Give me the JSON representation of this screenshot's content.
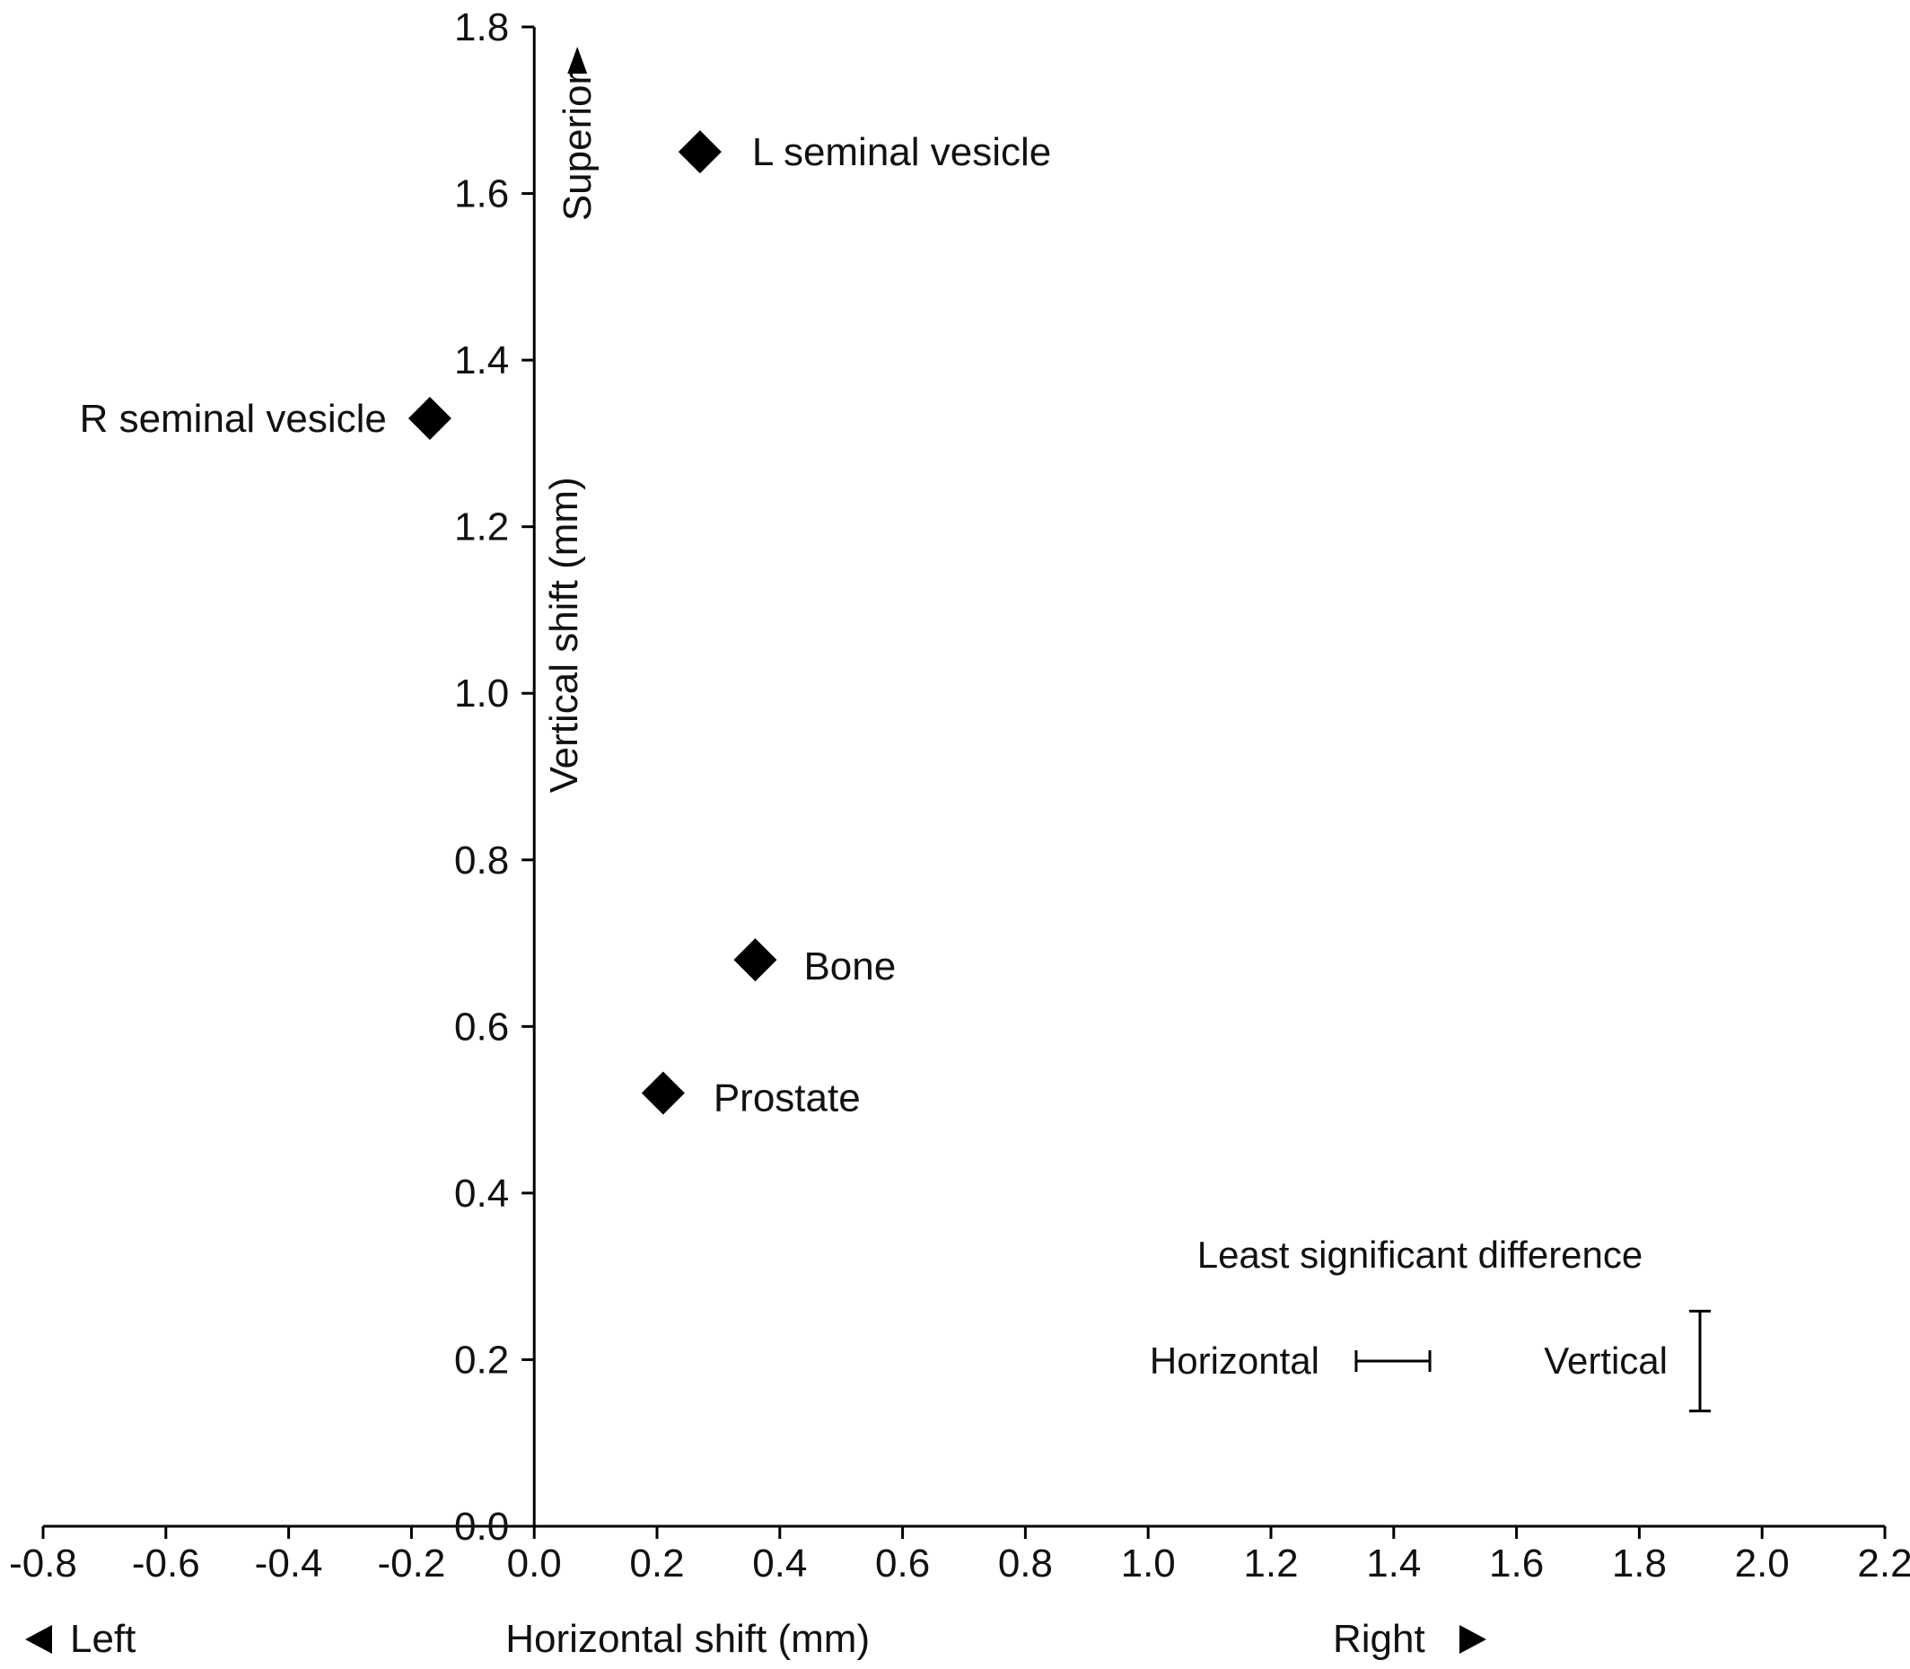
{
  "chart_data": {
    "type": "scatter",
    "title": "",
    "xlabel": "Horizontal shift (mm)",
    "ylabel": "Vertical shift (mm)",
    "xlim": [
      -0.8,
      2.2
    ],
    "ylim": [
      0.0,
      1.8
    ],
    "x_ticks": [
      "-0.8",
      "-0.6",
      "-0.4",
      "-0.2",
      "0.0",
      "0.2",
      "0.4",
      "0.6",
      "0.8",
      "1.0",
      "1.2",
      "1.4",
      "1.6",
      "1.8",
      "2.0",
      "2.2"
    ],
    "y_ticks": [
      "0.0",
      "0.2",
      "0.4",
      "0.6",
      "0.8",
      "1.0",
      "1.2",
      "1.4",
      "1.6",
      "1.8"
    ],
    "direction_labels": {
      "left": "Left",
      "right": "Right",
      "superior": "Superior"
    },
    "grid": false,
    "marker": "diamond",
    "marker_color": "#000000",
    "points": [
      {
        "label": "L seminal vesicle",
        "x": 0.27,
        "y": 1.65
      },
      {
        "label": "R seminal vesicle",
        "x": -0.17,
        "y": 1.33
      },
      {
        "label": "Bone",
        "x": 0.36,
        "y": 0.68
      },
      {
        "label": "Prostate",
        "x": 0.21,
        "y": 0.52
      }
    ],
    "least_significant_difference": {
      "title": "Least significant difference",
      "horizontal_label": "Horizontal",
      "vertical_label": "Vertical",
      "horizontal_mm": 0.12,
      "vertical_mm": 0.12
    }
  }
}
